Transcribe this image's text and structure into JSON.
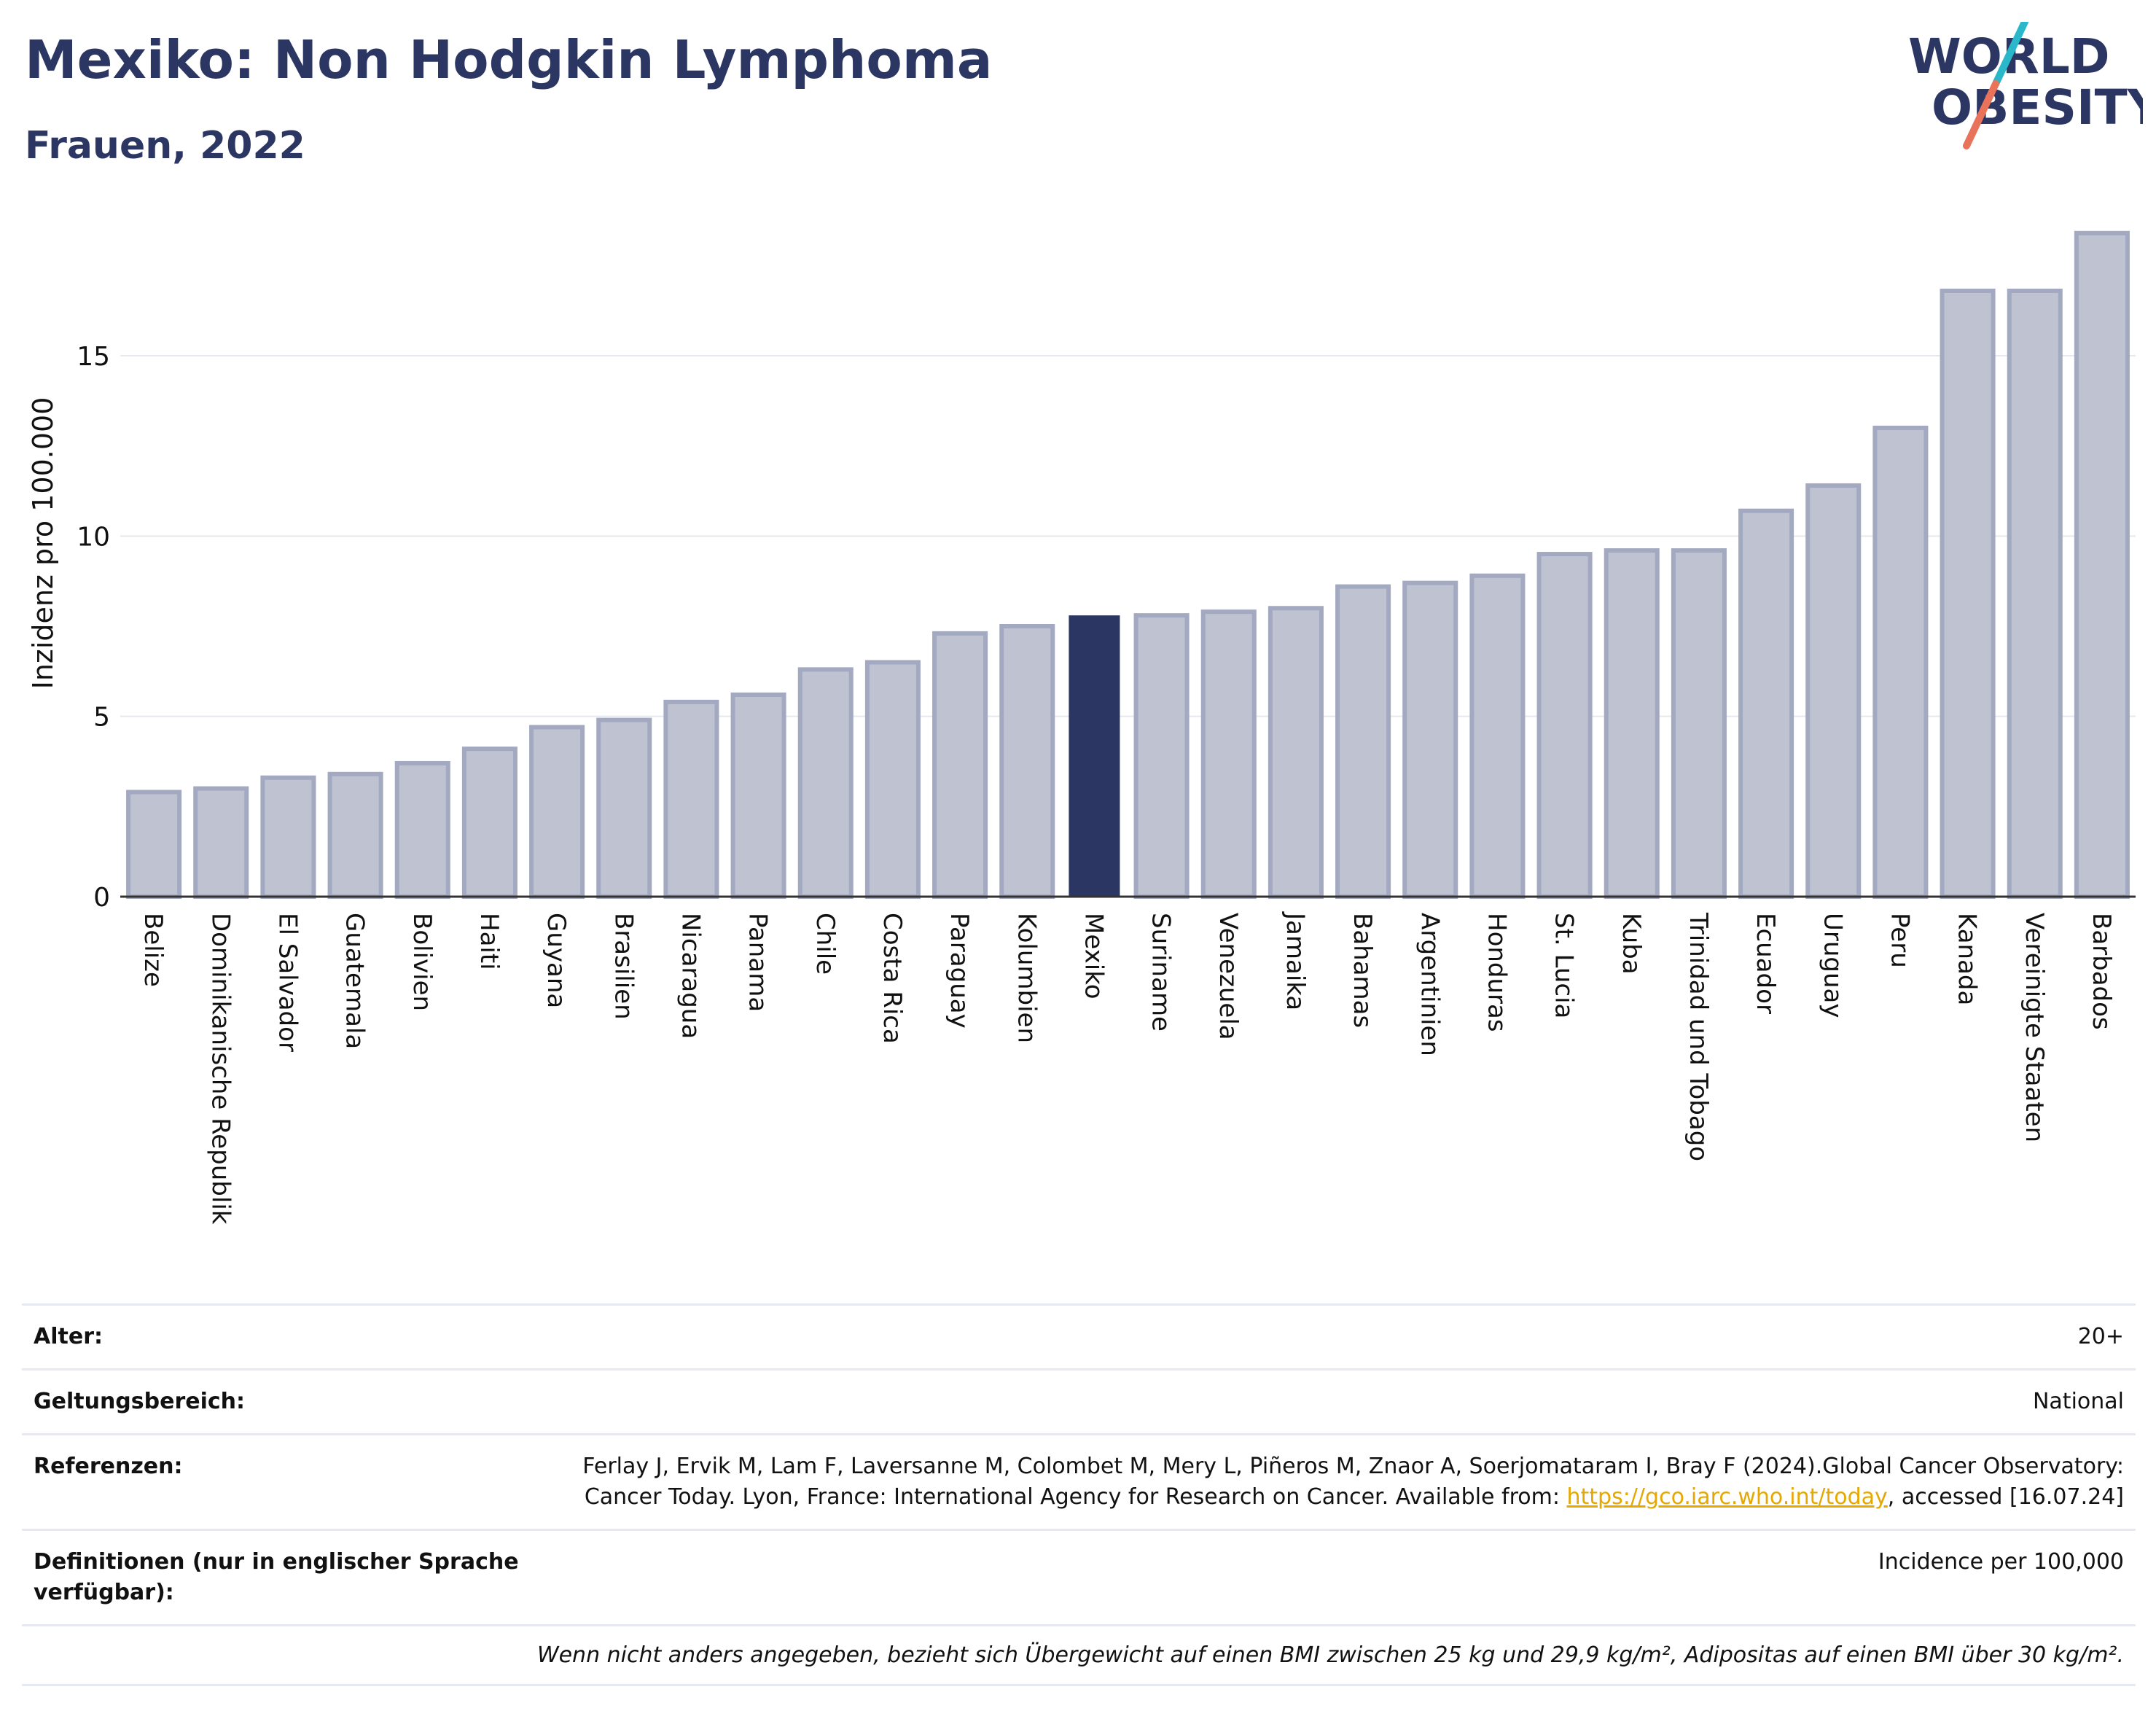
{
  "header": {
    "title": "Mexiko: Non Hodgkin Lymphoma",
    "subtitle": "Frauen, 2022"
  },
  "logo": {
    "line1": "WORLD",
    "line2": "OBESITY",
    "accent_colors": [
      "#2ab7ca",
      "#e8735a"
    ]
  },
  "chart_data": {
    "type": "bar",
    "title": "Mexiko: Non Hodgkin Lymphoma",
    "subtitle": "Frauen, 2022",
    "xlabel": "",
    "ylabel": "Inzidenz pro 100.000",
    "ylim": [
      0,
      18.8
    ],
    "yticks": [
      0,
      5,
      10,
      15
    ],
    "grid": true,
    "highlight": "Mexiko",
    "colors": {
      "bar": "#bfc3d1",
      "bar_edge": "#a3a9c0",
      "highlight": "#2b3663"
    },
    "categories": [
      "Belize",
      "Dominikanische Republik",
      "El Salvador",
      "Guatemala",
      "Bolivien",
      "Haiti",
      "Guyana",
      "Brasilien",
      "Nicaragua",
      "Panama",
      "Chile",
      "Costa Rica",
      "Paraguay",
      "Kolumbien",
      "Mexiko",
      "Suriname",
      "Venezuela",
      "Jamaika",
      "Bahamas",
      "Argentinien",
      "Honduras",
      "St. Lucia",
      "Kuba",
      "Trinidad und Tobago",
      "Ecuador",
      "Uruguay",
      "Peru",
      "Kanada",
      "Vereinigte Staaten",
      "Barbados"
    ],
    "values": [
      2.9,
      3.0,
      3.3,
      3.4,
      3.7,
      4.1,
      4.7,
      4.9,
      5.4,
      5.6,
      6.3,
      6.5,
      7.3,
      7.5,
      7.8,
      7.8,
      7.9,
      8.0,
      8.6,
      8.7,
      8.9,
      9.5,
      9.6,
      9.6,
      10.7,
      11.4,
      13.0,
      16.8,
      16.8,
      18.4
    ]
  },
  "meta": {
    "age_label": "Alter:",
    "age_value": "20+",
    "scope_label": "Geltungsbereich:",
    "scope_value": "National",
    "ref_label": "Referenzen:",
    "ref_text_1": "Ferlay J, Ervik M, Lam F, Laversanne M, Colombet M, Mery L, Piñeros M, Znaor A, Soerjomataram I, Bray F (2024).Global Cancer Observatory: Cancer Today. Lyon, France: International Agency for Research on Cancer. Available from: ",
    "ref_link": "https://gco.iarc.who.int/today",
    "ref_text_2": ", accessed [16.07.24]",
    "def_label": "Definitionen (nur in englischer Sprache verfügbar):",
    "def_value": "Incidence per 100,000",
    "note": "Wenn nicht anders angegeben, bezieht sich Übergewicht auf einen BMI zwischen 25 kg und 29,9 kg/m², Adipositas auf einen BMI über 30 kg/m²."
  }
}
